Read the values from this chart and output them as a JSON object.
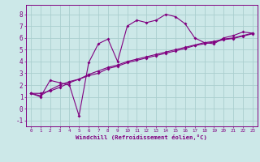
{
  "x": [
    0,
    1,
    2,
    3,
    4,
    5,
    6,
    7,
    8,
    9,
    10,
    11,
    12,
    13,
    14,
    15,
    16,
    17,
    18,
    19,
    20,
    21,
    22,
    23
  ],
  "line1": [
    1.3,
    1.0,
    2.4,
    2.2,
    2.0,
    -0.6,
    3.9,
    5.5,
    5.9,
    4.0,
    7.0,
    7.5,
    7.3,
    7.5,
    8.0,
    7.8,
    7.2,
    6.0,
    5.6,
    5.5,
    6.0,
    6.2,
    6.5,
    6.4
  ],
  "line2": [
    1.3,
    1.3,
    1.5,
    1.8,
    2.2,
    2.5,
    2.9,
    3.2,
    3.5,
    3.7,
    4.0,
    4.2,
    4.4,
    4.6,
    4.8,
    5.0,
    5.2,
    5.4,
    5.6,
    5.7,
    5.9,
    6.0,
    6.2,
    6.4
  ],
  "line3": [
    1.3,
    1.1,
    1.6,
    2.0,
    2.3,
    2.5,
    2.8,
    3.0,
    3.4,
    3.6,
    3.9,
    4.1,
    4.3,
    4.5,
    4.7,
    4.9,
    5.1,
    5.35,
    5.5,
    5.65,
    5.85,
    5.95,
    6.15,
    6.35
  ],
  "color": "#800080",
  "bg_color": "#cce8e8",
  "grid_color": "#aacece",
  "xlabel": "Windchill (Refroidissement éolien,°C)",
  "ylim": [
    -1.5,
    8.8
  ],
  "xlim": [
    -0.5,
    23.5
  ],
  "yticks": [
    -1,
    0,
    1,
    2,
    3,
    4,
    5,
    6,
    7,
    8
  ],
  "xticks": [
    0,
    1,
    2,
    3,
    4,
    5,
    6,
    7,
    8,
    9,
    10,
    11,
    12,
    13,
    14,
    15,
    16,
    17,
    18,
    19,
    20,
    21,
    22,
    23
  ],
  "xtick_labels": [
    "0",
    "1",
    "2",
    "3",
    "4",
    "5",
    "6",
    "7",
    "8",
    "9",
    "10",
    "11",
    "12",
    "13",
    "14",
    "15",
    "16",
    "17",
    "18",
    "19",
    "20",
    "21",
    "22",
    "23"
  ]
}
